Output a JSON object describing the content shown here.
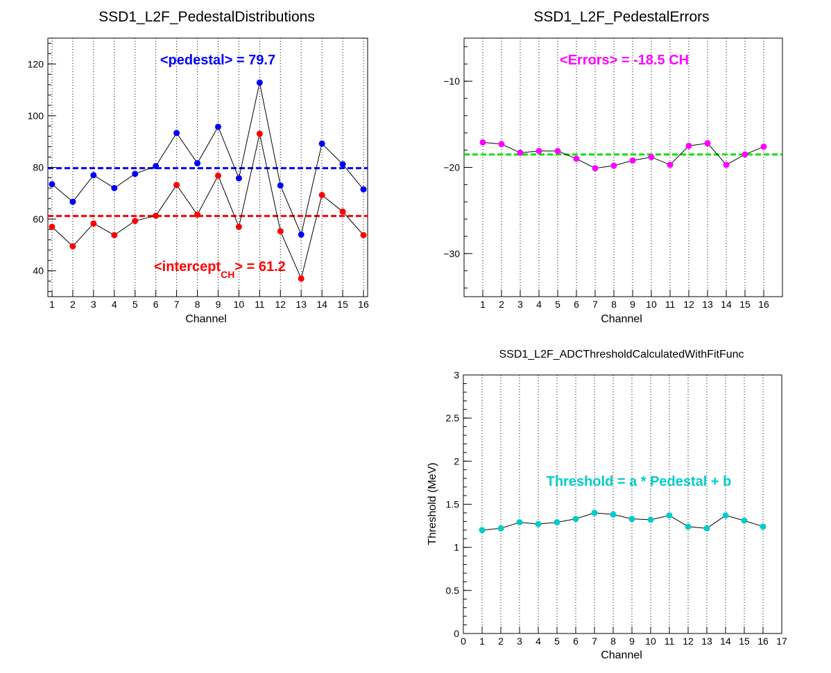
{
  "chart_data": [
    {
      "type": "scatter",
      "title": "SSD1_L2F_PedestalDistributions",
      "xlabel": "Channel",
      "ylabel": "",
      "xlim": [
        0.8,
        16.2
      ],
      "ylim": [
        30,
        130
      ],
      "x_ticks": [
        1,
        2,
        3,
        4,
        5,
        6,
        7,
        8,
        9,
        10,
        11,
        12,
        13,
        14,
        15,
        16
      ],
      "y_ticks": [
        40,
        60,
        80,
        100,
        120
      ],
      "grid_x": true,
      "series": [
        {
          "color": "#0000ff",
          "x": [
            1,
            2,
            3,
            4,
            5,
            6,
            7,
            8,
            9,
            10,
            11,
            12,
            13,
            14,
            15,
            16
          ],
          "values": [
            73.5,
            66.7,
            77,
            72,
            77.5,
            80.5,
            93.3,
            81.6,
            95.7,
            75.8,
            112.8,
            73,
            54,
            89.2,
            81.2,
            71.5
          ]
        },
        {
          "color": "#ff0000",
          "x": [
            1,
            2,
            3,
            4,
            5,
            6,
            7,
            8,
            9,
            10,
            11,
            12,
            13,
            14,
            15,
            16
          ],
          "values": [
            57,
            49.5,
            58.3,
            53.8,
            59.3,
            61.3,
            73.2,
            61.7,
            76.8,
            57,
            93,
            55.3,
            37,
            69.3,
            62.9,
            53.8
          ]
        }
      ],
      "reference_lines": [
        {
          "y": 79.7,
          "color": "#0000ff"
        },
        {
          "y": 61.2,
          "color": "#ff0000"
        }
      ],
      "annotations": [
        {
          "text": "<pedestal> = 79.7",
          "color": "#0000ff"
        },
        {
          "text_main": "<intercept",
          "text_sub": "CH",
          "text_tail": "> = 61.2",
          "color": "#ff0000"
        }
      ]
    },
    {
      "type": "scatter",
      "title": "SSD1_L2F_PedestalErrors",
      "xlabel": "Channel",
      "ylabel": "",
      "xlim": [
        0,
        17
      ],
      "ylim": [
        -35,
        -5
      ],
      "x_ticks": [
        1,
        2,
        3,
        4,
        5,
        6,
        7,
        8,
        9,
        10,
        11,
        12,
        13,
        14,
        15,
        16
      ],
      "y_ticks": [
        -10,
        -20,
        -30
      ],
      "grid_x": true,
      "series": [
        {
          "color": "#ff00ff",
          "x": [
            1,
            2,
            3,
            4,
            5,
            6,
            7,
            8,
            9,
            10,
            11,
            12,
            13,
            14,
            15,
            16
          ],
          "values": [
            -17.1,
            -17.3,
            -18.3,
            -18.1,
            -18.1,
            -19,
            -20.1,
            -19.8,
            -19.2,
            -18.8,
            -19.7,
            -17.5,
            -17.2,
            -19.7,
            -18.5,
            -17.6
          ]
        }
      ],
      "reference_lines": [
        {
          "y": -18.5,
          "color": "#00e000"
        }
      ],
      "annotations": [
        {
          "text": "<Errors> = -18.5 CH",
          "color": "#ff00ff"
        }
      ]
    },
    {
      "type": "scatter",
      "title": "SSD1_L2F_ADCThresholdCalculatedWithFitFunc",
      "xlabel": "Channel",
      "ylabel": "Threshold (MeV)",
      "xlim": [
        0,
        17
      ],
      "ylim": [
        0,
        3
      ],
      "x_ticks": [
        0,
        1,
        2,
        3,
        4,
        5,
        6,
        7,
        8,
        9,
        10,
        11,
        12,
        13,
        14,
        15,
        16,
        17
      ],
      "y_ticks": [
        0,
        0.5,
        1,
        1.5,
        2,
        2.5,
        3
      ],
      "grid_x": true,
      "series": [
        {
          "color": "#00cccc",
          "x": [
            1,
            2,
            3,
            4,
            5,
            6,
            7,
            8,
            9,
            10,
            11,
            12,
            13,
            14,
            15,
            16
          ],
          "values": [
            1.2,
            1.22,
            1.29,
            1.27,
            1.29,
            1.33,
            1.4,
            1.38,
            1.33,
            1.32,
            1.37,
            1.24,
            1.22,
            1.37,
            1.31,
            1.24
          ]
        }
      ],
      "reference_lines": [],
      "annotations": [
        {
          "text": "Threshold = a * Pedestal + b",
          "color": "#00cccc"
        }
      ]
    }
  ]
}
